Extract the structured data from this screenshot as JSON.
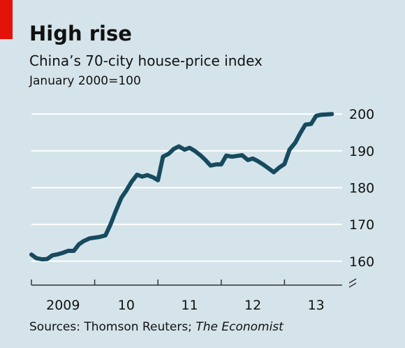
{
  "chart_data": {
    "type": "line",
    "title": "High rise",
    "subtitle": "China’s 70-city house-price index",
    "note": "January 2000=100",
    "source": "Sources: Thomson Reuters; ",
    "source_italic": "The Economist",
    "x": [
      2009.0,
      2009.08,
      2009.17,
      2009.25,
      2009.33,
      2009.42,
      2009.5,
      2009.58,
      2009.67,
      2009.75,
      2009.83,
      2009.92,
      2010.0,
      2010.08,
      2010.17,
      2010.25,
      2010.33,
      2010.42,
      2010.5,
      2010.58,
      2010.67,
      2010.75,
      2010.83,
      2010.92,
      2011.0,
      2011.08,
      2011.17,
      2011.25,
      2011.33,
      2011.42,
      2011.5,
      2011.58,
      2011.67,
      2011.75,
      2011.83,
      2011.92,
      2012.0,
      2012.08,
      2012.17,
      2012.25,
      2012.33,
      2012.42,
      2012.5,
      2012.58,
      2012.67,
      2012.75,
      2012.83,
      2012.92,
      2013.0,
      2013.08,
      2013.17,
      2013.25,
      2013.33,
      2013.42,
      2013.5,
      2013.58,
      2013.67,
      2013.75
    ],
    "series": [
      {
        "name": "House-price index",
        "color": "#174a5e",
        "values": [
          161.8,
          160.8,
          160.5,
          160.6,
          161.6,
          161.9,
          162.3,
          162.8,
          162.8,
          164.6,
          165.5,
          166.2,
          166.4,
          166.6,
          167.0,
          170.0,
          173.5,
          177.2,
          179.2,
          181.5,
          183.5,
          183.0,
          183.4,
          182.8,
          182.0,
          188.4,
          189.2,
          190.5,
          191.2,
          190.3,
          190.8,
          190.0,
          188.8,
          187.5,
          186.0,
          186.3,
          186.3,
          188.7,
          188.4,
          188.6,
          188.8,
          187.5,
          187.9,
          187.2,
          186.2,
          185.2,
          184.2,
          185.5,
          186.4,
          190.3,
          192.2,
          194.8,
          197.1,
          197.3,
          199.5,
          199.8,
          199.9,
          200.0
        ]
      }
    ],
    "xlim": [
      2009,
      2014
    ],
    "xticks": [
      {
        "value": 2009,
        "label": "2009"
      },
      {
        "value": 2010,
        "label": "10"
      },
      {
        "value": 2011,
        "label": "11"
      },
      {
        "value": 2012,
        "label": "12"
      },
      {
        "value": 2013,
        "label": "13"
      }
    ],
    "ylim": [
      153.5,
      202.5
    ],
    "yticks": [
      160,
      170,
      180,
      190,
      200
    ],
    "grid": true
  }
}
